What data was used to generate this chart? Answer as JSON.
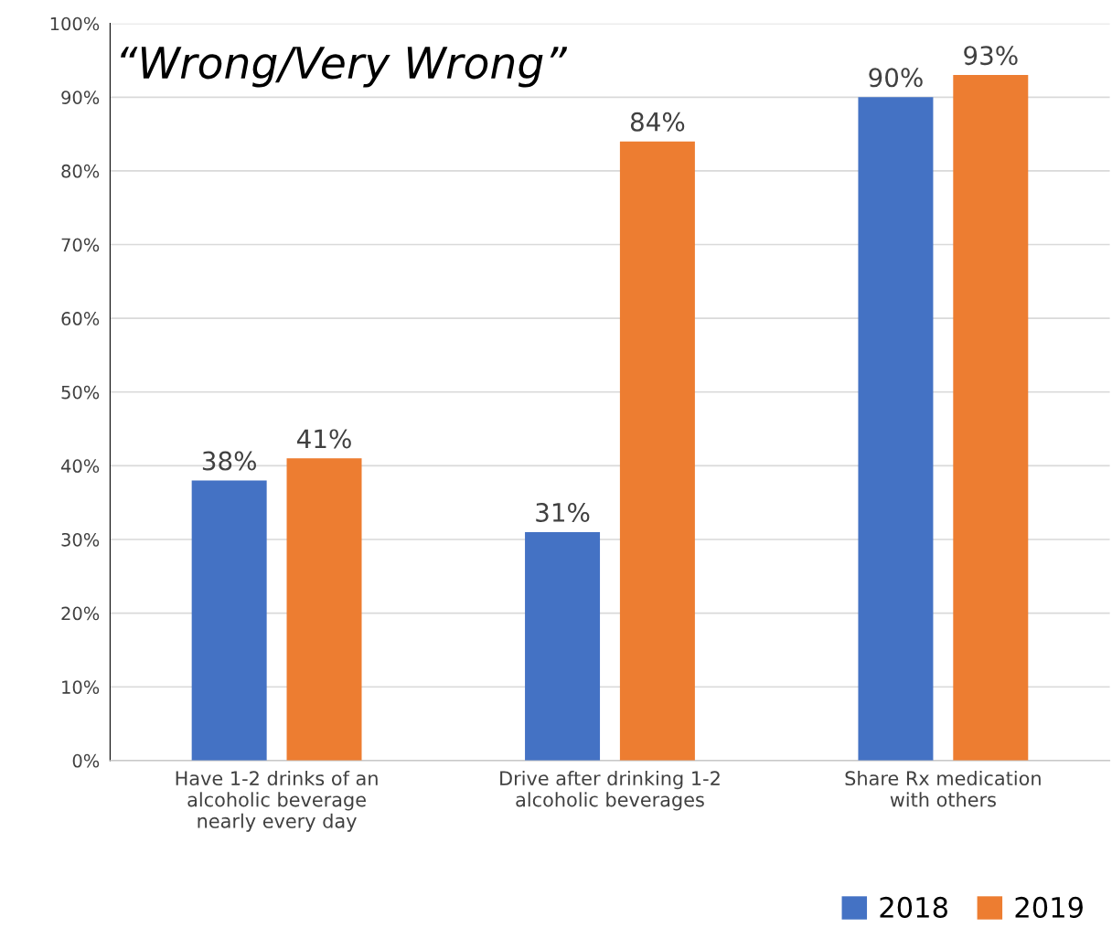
{
  "chart_data": {
    "type": "bar",
    "title": "“Wrong/Very Wrong”",
    "categories": [
      "Have 1-2 drinks of an\nalcoholic beverage\nnearly every day",
      "Drive after drinking 1-2\nalcoholic beverages",
      "Share Rx medication\nwith others"
    ],
    "series": [
      {
        "name": "2018",
        "color": "#4472c4",
        "values": [
          38,
          31,
          90
        ]
      },
      {
        "name": "2019",
        "color": "#ed7d31",
        "values": [
          41,
          84,
          93
        ]
      }
    ],
    "ylim": [
      0,
      100
    ],
    "yticks": [
      {
        "value": 0,
        "label": "0%"
      },
      {
        "value": 10,
        "label": "10%"
      },
      {
        "value": 20,
        "label": "20%"
      },
      {
        "value": 30,
        "label": "30%"
      },
      {
        "value": 40,
        "label": "40%"
      },
      {
        "value": 50,
        "label": "50%"
      },
      {
        "value": 60,
        "label": "60%"
      },
      {
        "value": 70,
        "label": "70%"
      },
      {
        "value": 80,
        "label": "80%"
      },
      {
        "value": 90,
        "label": "90%"
      },
      {
        "value": 100,
        "label": "100%"
      }
    ],
    "value_labels": [
      [
        "38%",
        "31%",
        "90%"
      ],
      [
        "41%",
        "84%",
        "93%"
      ]
    ],
    "grid": "y",
    "legend": "bottom right"
  }
}
